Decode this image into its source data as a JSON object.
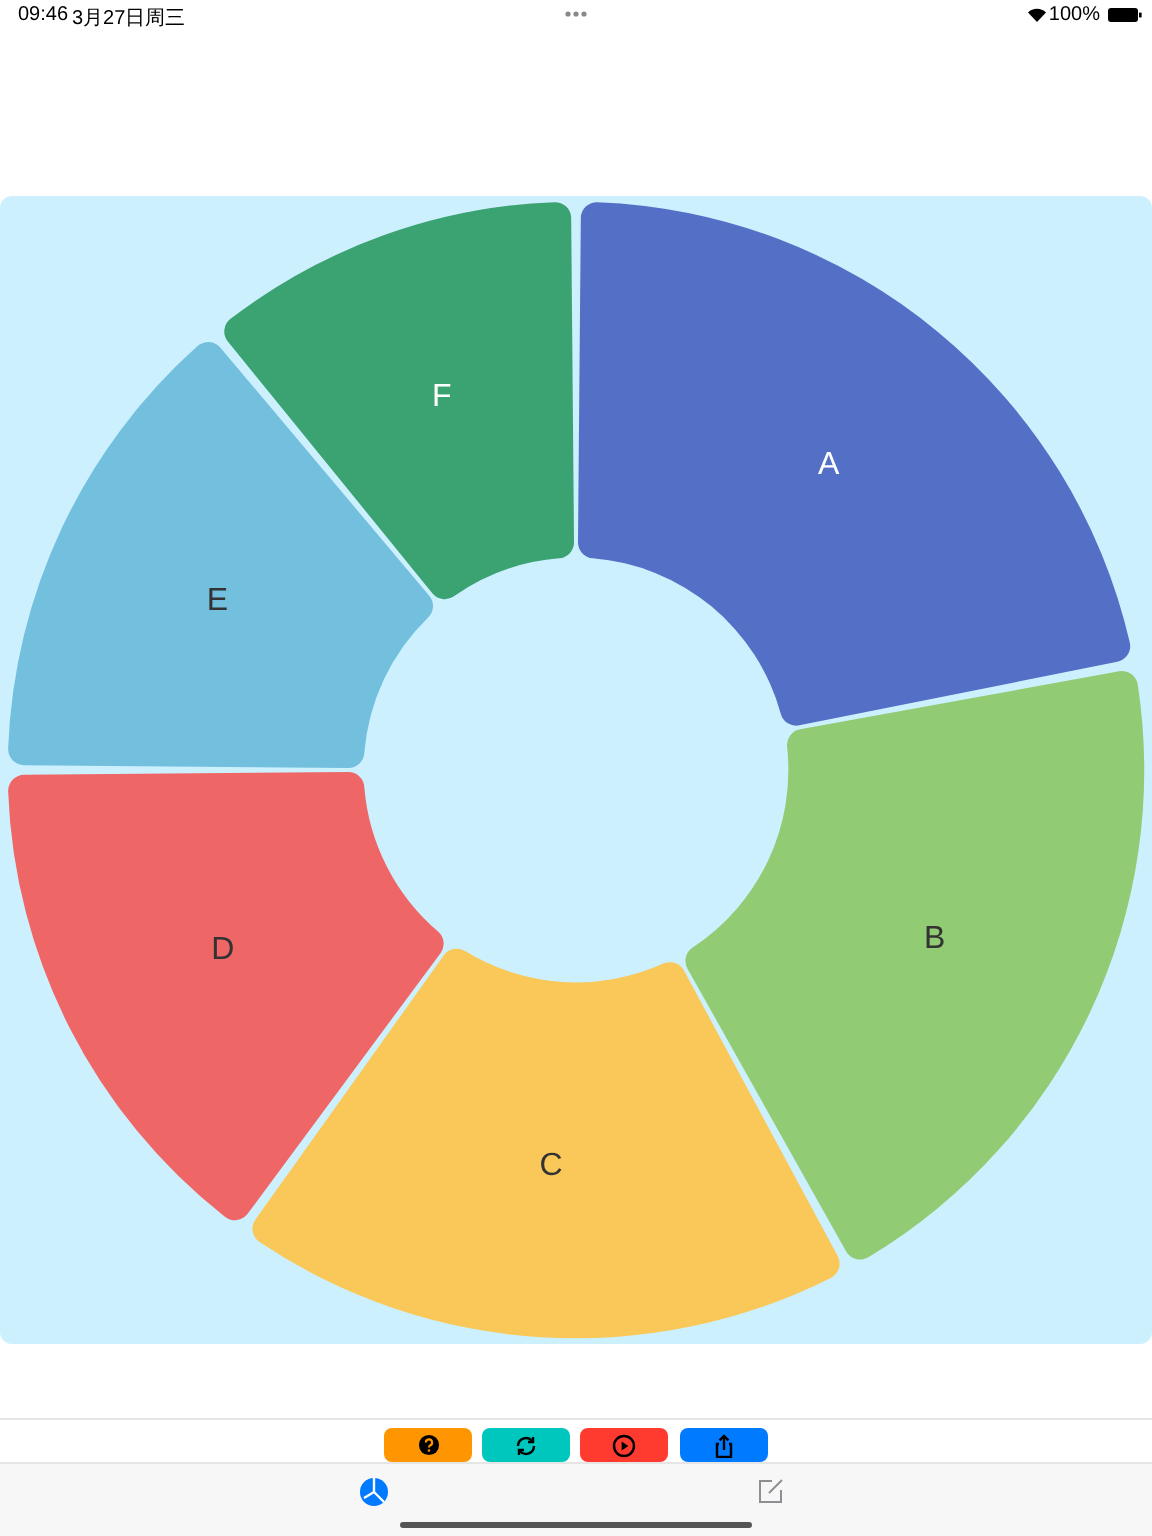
{
  "chart_data": {
    "type": "donut",
    "categories": [
      "A",
      "B",
      "C",
      "D",
      "E",
      "F"
    ],
    "values": [
      22,
      20,
      18,
      15,
      14,
      11
    ],
    "colors": [
      "#5470c6",
      "#91cc75",
      "#fac858",
      "#ee6666",
      "#73c0de",
      "#3ba272"
    ],
    "annotations": [
      "09:46",
      "3月27日周三",
      "100%"
    ]
  }
}
